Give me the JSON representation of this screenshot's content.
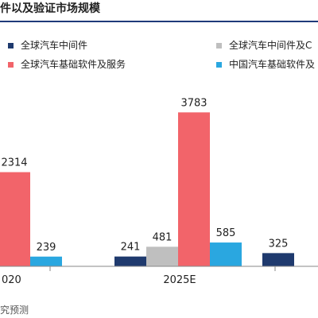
{
  "header": {
    "title": "件以及验证市场规模"
  },
  "footer": {
    "source": "究预测"
  },
  "chart_data": {
    "type": "bar",
    "title": "件以及验证市场规模",
    "categories": [
      "020",
      "2025E",
      ""
    ],
    "series": [
      {
        "name": "全球汽车中间件",
        "color": "#1f3a6e",
        "values": [
          null,
          241,
          325
        ]
      },
      {
        "name": "全球汽车中间件及C",
        "color": "#bfbfbf",
        "values": [
          null,
          481,
          null
        ]
      },
      {
        "name": "全球汽车基础软件及服务",
        "color": "#f2646a",
        "values": [
          2314,
          3783,
          null
        ]
      },
      {
        "name": "中国汽车基础软件及",
        "color": "#2aa7e0",
        "values": [
          239,
          585,
          null
        ]
      }
    ],
    "xlabel": "",
    "ylabel": "",
    "ylim": [
      0,
      4200
    ],
    "grid": false,
    "legend": "top"
  }
}
